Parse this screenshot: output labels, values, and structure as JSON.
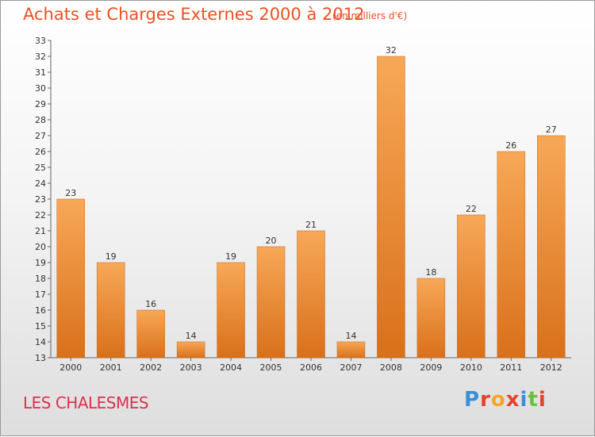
{
  "header": {
    "title": "Achats et Charges Externes 2000 à 2012",
    "subtitle": "(en milliers d'€)"
  },
  "footer": {
    "commune": "LES CHALESMES",
    "logo_text": "Proxiti",
    "logo_colors": [
      "#3a8fd9",
      "#e8402a",
      "#f5a623",
      "#e8402a",
      "#3a8fd9",
      "#6bbf3a",
      "#e8402a"
    ]
  },
  "chart_data": {
    "type": "bar",
    "categories": [
      "2000",
      "2001",
      "2002",
      "2003",
      "2004",
      "2005",
      "2006",
      "2007",
      "2008",
      "2009",
      "2010",
      "2011",
      "2012"
    ],
    "values": [
      23,
      19,
      16,
      14,
      19,
      20,
      21,
      14,
      32,
      18,
      22,
      26,
      27
    ],
    "ylim": [
      13,
      33
    ],
    "yticks": [
      13,
      14,
      15,
      16,
      17,
      18,
      19,
      20,
      21,
      22,
      23,
      24,
      25,
      26,
      27,
      28,
      29,
      30,
      31,
      32,
      33
    ],
    "grid": false,
    "bar_color_light": "#f7a857",
    "bar_color_dark": "#d9701a"
  }
}
